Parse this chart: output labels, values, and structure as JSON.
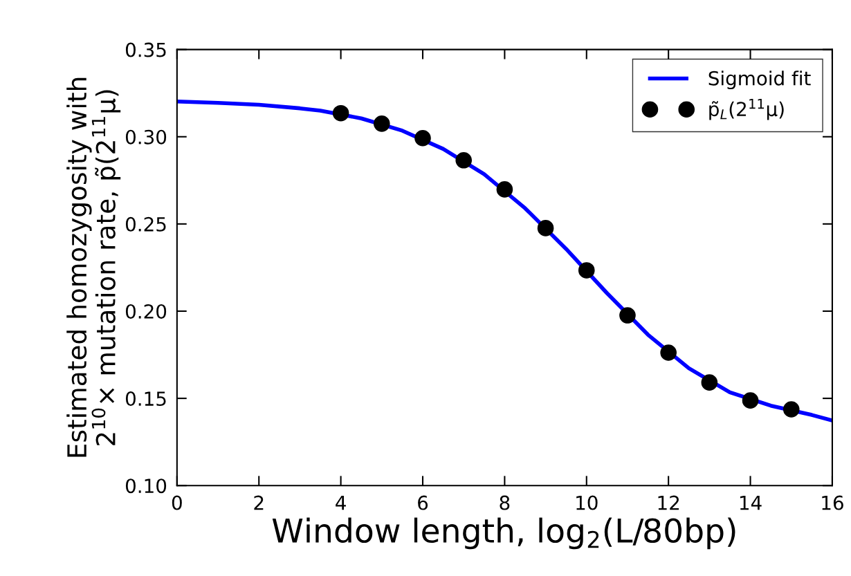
{
  "chart_data": {
    "type": "scatter",
    "xlabel": "Window length, log$_{2}$(L/80bp)",
    "ylabel": "Estimated homozygosity with\n2$^{10}$× mutation rate, p̃(2$^{11}$μ)",
    "xlim": [
      0,
      16
    ],
    "xticks": [
      0,
      2,
      4,
      6,
      8,
      10,
      12,
      14,
      16
    ],
    "ylim": [
      0.1,
      0.35
    ],
    "yticks": [
      {
        "value": 0.1,
        "label": "0.10"
      },
      {
        "value": 0.15,
        "label": "0.15"
      },
      {
        "value": 0.2,
        "label": "0.20"
      },
      {
        "value": 0.25,
        "label": "0.25"
      },
      {
        "value": 0.3,
        "label": "0.30"
      },
      {
        "value": 0.35,
        "label": "0.35"
      }
    ],
    "legend": "top right",
    "grid": false,
    "series": [
      {
        "name": "Sigmoid fit",
        "type": "line",
        "color": "#0000ff",
        "marker": "none",
        "line_style": "solid",
        "x": [
          0,
          1,
          2,
          3,
          3.5,
          4.5,
          5.5,
          6.5,
          7.5,
          8.5,
          9.5,
          10.5,
          11.5,
          12.5,
          13.5,
          14.5,
          15.5,
          16
        ],
        "values": [
          0.3202,
          0.3194,
          0.3183,
          0.3163,
          0.315,
          0.3105,
          0.3035,
          0.293,
          0.2785,
          0.259,
          0.2357,
          0.2103,
          0.1865,
          0.1672,
          0.1535,
          0.1458,
          0.1405,
          0.1373
        ]
      },
      {
        "name": "p̃$_{L}$(2$^{11}$μ)",
        "color": "#000000",
        "marker": "circle",
        "x": [
          4,
          5,
          6,
          7,
          8,
          9,
          10,
          11,
          12,
          13,
          14,
          15
        ],
        "values": [
          0.3135,
          0.3075,
          0.2992,
          0.2865,
          0.2698,
          0.2476,
          0.2234,
          0.1976,
          0.1762,
          0.1591,
          0.1488,
          0.1437
        ]
      }
    ]
  }
}
